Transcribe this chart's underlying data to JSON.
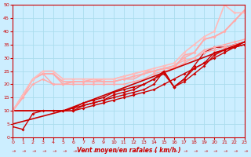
{
  "bg_color": "#cceeff",
  "grid_color": "#aaddee",
  "xlabel": "Vent moyen/en rafales ( km/h )",
  "xlim": [
    0,
    23
  ],
  "ylim": [
    0,
    50
  ],
  "xticks": [
    0,
    1,
    2,
    3,
    4,
    5,
    6,
    7,
    8,
    9,
    10,
    11,
    12,
    13,
    14,
    15,
    16,
    17,
    18,
    19,
    20,
    21,
    22,
    23
  ],
  "yticks": [
    0,
    5,
    10,
    15,
    20,
    25,
    30,
    35,
    40,
    45,
    50
  ],
  "lines": [
    {
      "x": [
        0,
        1,
        2,
        3,
        4,
        5,
        6,
        7,
        8,
        9,
        10,
        11,
        12,
        13,
        14,
        15,
        16,
        17,
        18,
        19,
        20,
        21,
        22,
        23
      ],
      "y": [
        4,
        3,
        9,
        10,
        10,
        10,
        10,
        12,
        13,
        14,
        15,
        16,
        17,
        18,
        20,
        25,
        19,
        22,
        27,
        32,
        34,
        34,
        35,
        36
      ],
      "color": "#cc0000",
      "lw": 1.0,
      "marker": "D",
      "ms": 2.0
    },
    {
      "x": [
        0,
        1,
        2,
        3,
        4,
        5,
        6,
        7,
        8,
        9,
        10,
        11,
        12,
        13,
        14,
        15,
        16,
        17,
        18,
        19,
        20,
        21,
        22,
        23
      ],
      "y": [
        10,
        15,
        22,
        24,
        24,
        20,
        21,
        21,
        22,
        21,
        21,
        22,
        23,
        24,
        25,
        26,
        27,
        30,
        32,
        37,
        38,
        40,
        44,
        48
      ],
      "color": "#ffaaaa",
      "lw": 1.2,
      "marker": "D",
      "ms": 2.0
    },
    {
      "x": [
        0,
        1,
        2,
        3,
        4,
        5,
        6,
        7,
        8,
        9,
        10,
        11,
        12,
        13,
        14,
        15,
        16,
        17,
        18,
        19,
        20,
        21,
        22,
        23
      ],
      "y": [
        10,
        16,
        22,
        24,
        24,
        21,
        21,
        21,
        21,
        21,
        21,
        22,
        22,
        24,
        25,
        26,
        26,
        31,
        32,
        37,
        38,
        40,
        44,
        48
      ],
      "color": "#ffaaaa",
      "lw": 1.2,
      "marker": null,
      "ms": 0
    },
    {
      "x": [
        0,
        1,
        2,
        3,
        4,
        5,
        6,
        7,
        8,
        9,
        10,
        11,
        12,
        13,
        14,
        15,
        16,
        17,
        18,
        19,
        20,
        21,
        22,
        23
      ],
      "y": [
        10,
        16,
        22,
        24,
        20,
        20,
        20,
        20,
        20,
        20,
        20,
        20,
        21,
        22,
        24,
        25,
        26,
        28,
        30,
        32,
        33,
        34,
        35,
        36
      ],
      "color": "#ffaaaa",
      "lw": 1.0,
      "marker": "D",
      "ms": 2.0
    },
    {
      "x": [
        0,
        5,
        23
      ],
      "y": [
        5,
        10,
        36
      ],
      "color": "#cc0000",
      "lw": 1.2,
      "marker": null,
      "ms": 0
    },
    {
      "x": [
        0,
        6,
        7,
        8,
        9,
        10,
        11,
        12,
        13,
        14,
        15,
        16,
        17,
        18,
        19,
        20,
        21,
        22,
        23
      ],
      "y": [
        10,
        10,
        11,
        12,
        13,
        14,
        15,
        16,
        17,
        18,
        20,
        22,
        24,
        26,
        28,
        30,
        32,
        34,
        36
      ],
      "color": "#cc0000",
      "lw": 1.0,
      "marker": "D",
      "ms": 2.0
    },
    {
      "x": [
        0,
        5,
        6,
        7,
        8,
        9,
        10,
        11,
        12,
        13,
        14,
        15,
        16,
        17,
        18,
        19,
        20,
        21,
        22,
        23
      ],
      "y": [
        10,
        10,
        11,
        12,
        13,
        14,
        16,
        17,
        18,
        20,
        22,
        24,
        19,
        22,
        26,
        28,
        32,
        33,
        34,
        35
      ],
      "color": "#cc0000",
      "lw": 1.0,
      "marker": "D",
      "ms": 2.0
    },
    {
      "x": [
        0,
        5,
        6,
        7,
        8,
        9,
        10,
        11,
        12,
        13,
        14,
        15,
        16,
        17,
        18,
        19,
        20,
        21,
        22,
        23
      ],
      "y": [
        10,
        10,
        11,
        13,
        14,
        15,
        17,
        18,
        19,
        20,
        22,
        25,
        19,
        21,
        24,
        27,
        31,
        33,
        34,
        35
      ],
      "color": "#cc0000",
      "lw": 1.0,
      "marker": "D",
      "ms": 2.0
    },
    {
      "x": [
        0,
        1,
        2,
        3,
        4,
        5,
        6,
        7,
        8,
        9,
        10,
        11,
        12,
        13,
        14,
        15,
        16,
        17,
        18,
        19,
        20,
        21,
        22,
        23
      ],
      "y": [
        10,
        15,
        20,
        22,
        20,
        20,
        21,
        21,
        21,
        22,
        22,
        23,
        24,
        25,
        25,
        26,
        27,
        29,
        30,
        33,
        34,
        35,
        36,
        37
      ],
      "color": "#ffaaaa",
      "lw": 1.0,
      "marker": "D",
      "ms": 2.0
    },
    {
      "x": [
        0,
        1,
        2,
        3,
        4,
        5,
        6,
        7,
        8,
        9,
        10,
        11,
        12,
        13,
        14,
        15,
        16,
        17,
        18,
        19,
        20,
        21,
        22,
        23
      ],
      "y": [
        10,
        16,
        22,
        25,
        25,
        22,
        22,
        22,
        22,
        22,
        22,
        23,
        24,
        25,
        26,
        27,
        28,
        32,
        35,
        38,
        40,
        50,
        47,
        47
      ],
      "color": "#ffbbbb",
      "lw": 1.2,
      "marker": "D",
      "ms": 2.0
    }
  ],
  "axis_color": "#cc0000",
  "tick_color": "#cc0000",
  "xlabel_color": "#cc0000"
}
